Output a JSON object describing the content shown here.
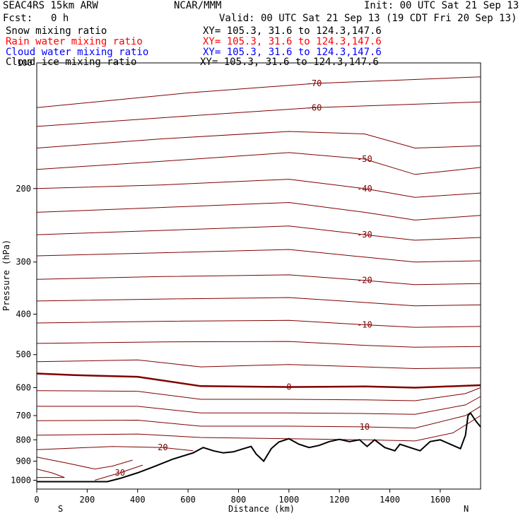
{
  "header": {
    "model": "SEAC4RS 15km ARW",
    "center": "NCAR/MMM",
    "init": "Init: 00 UTC Sat 21 Sep 13",
    "fcst_label": "Fcst:",
    "fcst_value": "0 h",
    "valid": "Valid: 00 UTC Sat 21 Sep 13 (19 CDT Fri 20 Sep 13)"
  },
  "fields": [
    {
      "name": "Snow mixing ratio",
      "xy": "XY= 105.3, 31.6 to 124.3,147.6",
      "color": "#000000"
    },
    {
      "name": "Rain water mixing ratio",
      "xy": "XY= 105.3, 31.6 to 124.3,147.6",
      "color": "#ff0000"
    },
    {
      "name": "Cloud water mixing ratio",
      "xy": "XY= 105.3, 31.6 to 124.3,147.6",
      "color": "#0000ff"
    },
    {
      "name": "Cloud ice mixing ratio",
      "xy": "XY= 105.3, 31.6 to 124.3,147.6",
      "color": "#000000"
    }
  ],
  "chart_data": {
    "type": "cross-section contour",
    "xlabel": "Distance (km)",
    "ylabel": "Pressure (hPa)",
    "xlim": [
      0,
      1760
    ],
    "ylim": [
      1050,
      100
    ],
    "y_log_scale": true,
    "x_ticks": [
      0,
      200,
      400,
      600,
      800,
      1000,
      1200,
      1400,
      1600
    ],
    "y_ticks": [
      200,
      300,
      400,
      500,
      600,
      700,
      800,
      900,
      1000
    ],
    "y_top_label": "100",
    "end_labels": {
      "left": "S",
      "right": "N"
    },
    "contour_color": "#800000",
    "terrain_color": "#000000",
    "terrain": {
      "x": [
        0,
        140,
        280,
        330,
        400,
        460,
        540,
        620,
        660,
        700,
        740,
        780,
        820,
        850,
        870,
        900,
        930,
        960,
        1000,
        1040,
        1080,
        1120,
        1160,
        1200,
        1240,
        1280,
        1310,
        1340,
        1380,
        1420,
        1440,
        1480,
        1520,
        1560,
        1600,
        1640,
        1680,
        1700,
        1710,
        1720,
        1740,
        1760
      ],
      "p": [
        1008,
        1008,
        1008,
        990,
        960,
        930,
        890,
        860,
        835,
        850,
        860,
        855,
        840,
        830,
        865,
        900,
        840,
        810,
        795,
        820,
        835,
        825,
        808,
        798,
        808,
        800,
        830,
        800,
        835,
        850,
        820,
        835,
        850,
        808,
        800,
        820,
        840,
        780,
        700,
        690,
        720,
        745
      ]
    },
    "isotherms": [
      {
        "label": "-70",
        "x": [
          0,
          600,
          1100,
          1760
        ],
        "p": [
          128,
          118,
          112,
          108
        ]
      },
      {
        "label": "-60",
        "x": [
          0,
          600,
          1100,
          1760
        ],
        "p": [
          142,
          134,
          128,
          124
        ]
      },
      {
        "label": "",
        "x": [
          0,
          500,
          1000,
          1300,
          1500,
          1760
        ],
        "p": [
          160,
          152,
          146,
          148,
          160,
          158
        ]
      },
      {
        "label": "-50",
        "x": [
          0,
          500,
          1000,
          1300,
          1500,
          1760
        ],
        "p": [
          180,
          172,
          164,
          170,
          185,
          178
        ]
      },
      {
        "label": "-40",
        "x": [
          0,
          500,
          1000,
          1300,
          1500,
          1760
        ],
        "p": [
          200,
          196,
          190,
          200,
          210,
          205
        ]
      },
      {
        "label": "",
        "x": [
          0,
          500,
          1000,
          1300,
          1500,
          1760
        ],
        "p": [
          228,
          222,
          216,
          228,
          238,
          232
        ]
      },
      {
        "label": "-30",
        "x": [
          0,
          500,
          1000,
          1300,
          1500,
          1760
        ],
        "p": [
          258,
          252,
          246,
          258,
          266,
          262
        ]
      },
      {
        "label": "",
        "x": [
          0,
          500,
          1000,
          1300,
          1500,
          1760
        ],
        "p": [
          290,
          285,
          280,
          292,
          300,
          298
        ]
      },
      {
        "label": "-20",
        "x": [
          0,
          500,
          1000,
          1300,
          1500,
          1760
        ],
        "p": [
          330,
          325,
          322,
          332,
          340,
          338
        ]
      },
      {
        "label": "",
        "x": [
          0,
          500,
          1000,
          1300,
          1500,
          1760
        ],
        "p": [
          372,
          368,
          365,
          375,
          382,
          380
        ]
      },
      {
        "label": "-10",
        "x": [
          0,
          500,
          1000,
          1300,
          1500,
          1760
        ],
        "p": [
          420,
          416,
          414,
          424,
          430,
          428
        ]
      },
      {
        "label": "",
        "x": [
          0,
          500,
          1000,
          1300,
          1500,
          1760
        ],
        "p": [
          470,
          466,
          465,
          475,
          480,
          478
        ]
      },
      {
        "label": "",
        "x": [
          0,
          400,
          650,
          1000,
          1300,
          1500,
          1760
        ],
        "p": [
          520,
          515,
          535,
          528,
          535,
          540,
          538
        ]
      },
      {
        "label": "0",
        "x": [
          0,
          150,
          400,
          650,
          1000,
          1300,
          1500,
          1760
        ],
        "p": [
          555,
          560,
          565,
          595,
          598,
          596,
          600,
          592
        ]
      },
      {
        "label": "",
        "x": [
          0,
          400,
          650,
          1000,
          1300,
          1500,
          1700,
          1760
        ],
        "p": [
          610,
          612,
          640,
          640,
          642,
          645,
          620,
          600
        ]
      },
      {
        "label": "",
        "x": [
          0,
          400,
          650,
          1000,
          1300,
          1500,
          1700,
          1760
        ],
        "p": [
          665,
          665,
          690,
          690,
          692,
          695,
          660,
          630
        ]
      },
      {
        "label": "10",
        "x": [
          0,
          400,
          650,
          1000,
          1300,
          1500,
          1700,
          1760
        ],
        "p": [
          720,
          718,
          742,
          742,
          745,
          750,
          700,
          665
        ]
      },
      {
        "label": "",
        "x": [
          0,
          400,
          650,
          1000,
          1300,
          1500,
          1650,
          1760
        ],
        "p": [
          780,
          775,
          790,
          795,
          800,
          805,
          770,
          700
        ]
      },
      {
        "label": "20",
        "x": [
          0,
          300,
          500,
          620
        ],
        "p": [
          845,
          830,
          835,
          850
        ]
      },
      {
        "label": "",
        "x": [
          0,
          120,
          230,
          300,
          380
        ],
        "p": [
          880,
          910,
          940,
          925,
          895
        ]
      },
      {
        "label": "30",
        "x": [
          230,
          330,
          420
        ],
        "p": [
          1000,
          960,
          920
        ]
      },
      {
        "label": "",
        "x": [
          0,
          60,
          110,
          60,
          0
        ],
        "p": [
          940,
          960,
          985,
          985,
          985
        ]
      }
    ]
  }
}
